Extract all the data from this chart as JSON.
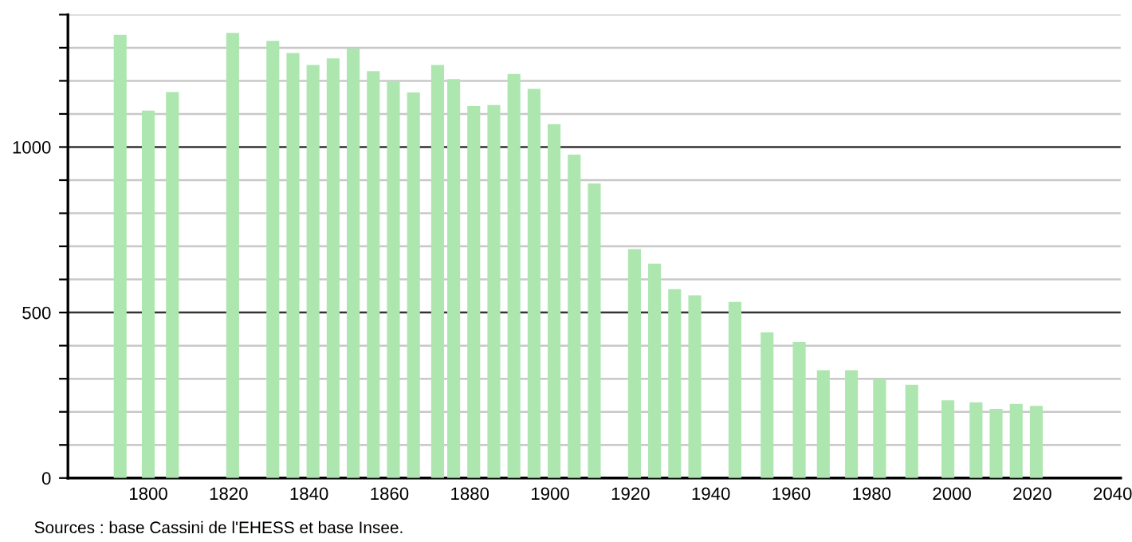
{
  "chart_data": {
    "type": "bar",
    "color": "#aee6b0",
    "x": [
      1793,
      1800,
      1806,
      1821,
      1831,
      1836,
      1841,
      1846,
      1851,
      1856,
      1861,
      1866,
      1872,
      1876,
      1881,
      1886,
      1891,
      1896,
      1901,
      1906,
      1911,
      1921,
      1926,
      1931,
      1936,
      1946,
      1954,
      1962,
      1968,
      1975,
      1982,
      1990,
      1999,
      2006,
      2011,
      2016,
      2021
    ],
    "values": [
      1339,
      1110,
      1166,
      1345,
      1321,
      1284,
      1248,
      1268,
      1298,
      1229,
      1198,
      1165,
      1248,
      1205,
      1124,
      1127,
      1221,
      1176,
      1069,
      977,
      890,
      692,
      648,
      571,
      552,
      532,
      440,
      411,
      326,
      326,
      300,
      282,
      235,
      229,
      209,
      224,
      218
    ],
    "xlim": [
      1780,
      2042
    ],
    "xticks": [
      1800,
      1820,
      1840,
      1860,
      1880,
      1900,
      1920,
      1940,
      1960,
      1980,
      2000,
      2020,
      2040
    ],
    "ylim": [
      0,
      1400
    ],
    "yticks": [
      0,
      {
        "value": 100,
        "label": null
      },
      {
        "value": 200,
        "label": null
      },
      {
        "value": 300,
        "label": null
      },
      {
        "value": 400,
        "label": null
      },
      500,
      {
        "value": 600,
        "label": null
      },
      {
        "value": 700,
        "label": null
      },
      {
        "value": 800,
        "label": null
      },
      {
        "value": 900,
        "label": null
      },
      1000,
      {
        "value": 1100,
        "label": null
      },
      {
        "value": 1200,
        "label": null
      },
      {
        "value": 1300,
        "label": null
      },
      {
        "value": 1400,
        "label": null
      }
    ],
    "grid": "y",
    "annotations": [
      "Sources : base Cassini de l'EHESS et base Insee."
    ]
  }
}
